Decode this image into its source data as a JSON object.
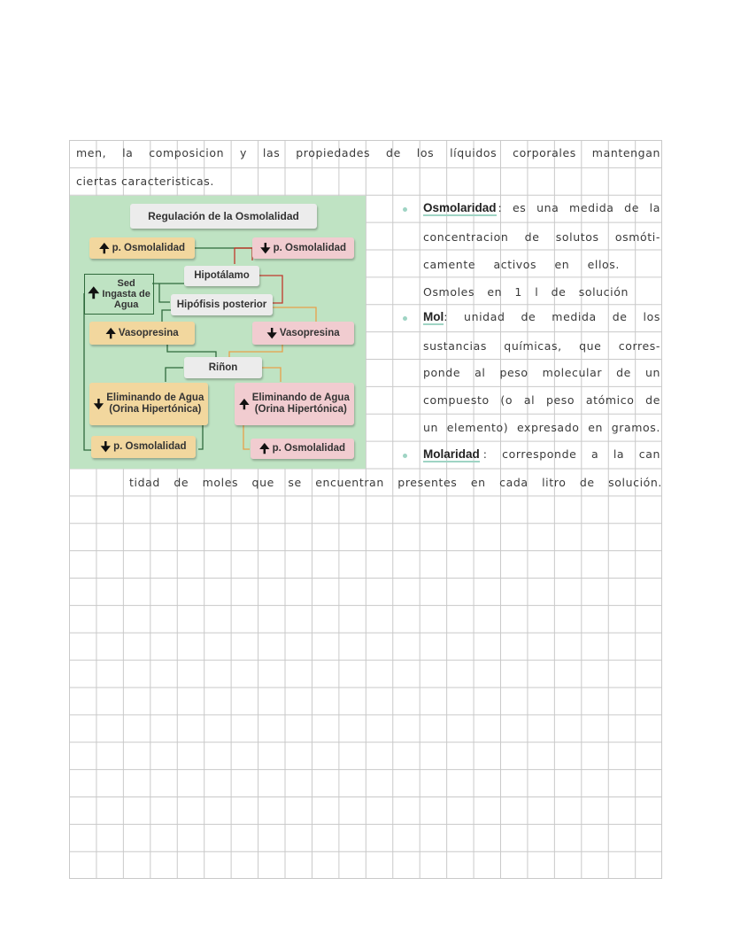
{
  "notes": {
    "line1": "men, la composicion y las propiedades de los líquidos corporales mantengan",
    "line2": "ciertas caracteristicas.",
    "osmolaridad": {
      "term": "Osmolaridad",
      "lines": [
        ": es una medida de la",
        "concentracion de solutos osmóti-",
        "camente activos en ellos.",
        "Osmoles en 1 l de solución"
      ]
    },
    "mol": {
      "term": "Mol",
      "lines": [
        ": unidad de medida de los",
        "sustancias químicas, que corres-",
        "ponde al peso molecular de un",
        "compuesto (o al peso atómico de",
        "un elemento) expresado en gramos."
      ]
    },
    "molaridad": {
      "term": "Molaridad",
      "lines": [
        ": corresponde a la can",
        "tidad de moles que se encuentran presentes en cada litro de solución."
      ]
    }
  },
  "diagram": {
    "title": "Regulación de la Osmolalidad",
    "up_osmo": "p. Osmolalidad",
    "down_osmo": "p. Osmolalidad",
    "hipotalamo": "Hipotálamo",
    "sed": [
      "Sed",
      "Ingasta de",
      "Agua"
    ],
    "hipofisis": "Hipófisis posterior",
    "up_vaso": "Vasopresina",
    "down_vaso": "Vasopresina",
    "rinon": "Riñon",
    "down_elim": [
      "Eliminando de Agua",
      "(Orina Hipertónica)"
    ],
    "up_elim": [
      "Eliminando de Agua",
      "(Orina Hipertónica)"
    ],
    "down_osmo_result": "p. Osmolalidad",
    "up_osmo_result": "p. Osmolalidad",
    "up_arrow": "🠉",
    "down_arrow": "🠋",
    "colors": {
      "background": "#bfe3c3",
      "increase": "#f2d79e",
      "decrease": "#f1ccd0",
      "neutral": "#ececec",
      "green_line": "#2f6a3c",
      "red_line": "#c0392b",
      "orange_line": "#e8a04a"
    }
  }
}
